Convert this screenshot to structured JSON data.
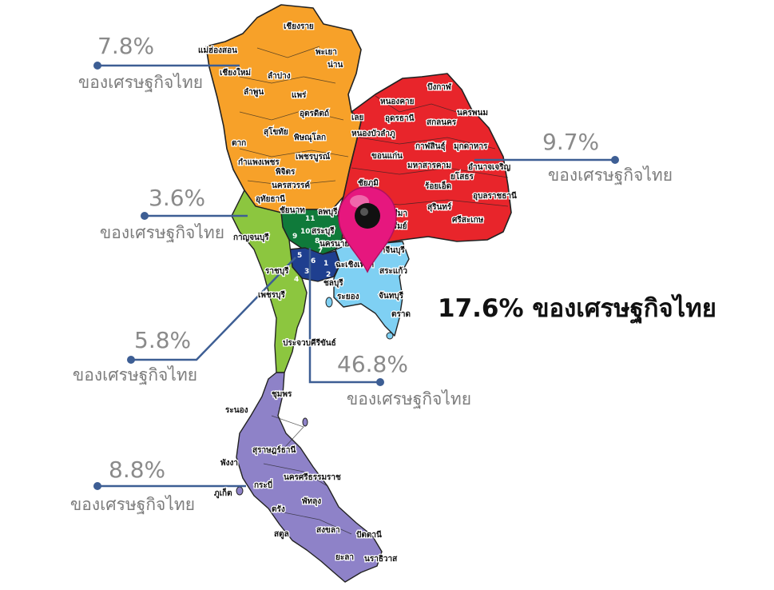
{
  "regions": {
    "north": {
      "percent": "7.8%",
      "label": "ของเศรษฐกิจไทย",
      "color": "#f7a129"
    },
    "northeast": {
      "percent": "9.7%",
      "label": "ของเศรษฐกิจไทย",
      "color": "#e8252b"
    },
    "west": {
      "percent": "3.6%",
      "label": "ของเศรษฐกิจไทย",
      "color": "#8cc63f"
    },
    "southwest": {
      "percent": "5.8%",
      "label": "ของเศรษฐกิจไทย",
      "color": "#8cc63f"
    },
    "central": {
      "percent": "46.8%",
      "label": "ของเศรษฐกิจไทย",
      "color": "#1f3f8f"
    },
    "south": {
      "percent": "8.8%",
      "label": "ของเศรษฐกิจไทย",
      "color": "#8e82c8"
    },
    "east": {
      "text": "17.6% ของเศรษฐกิจไทย",
      "color": "#7fd0f3"
    }
  },
  "provinces": {
    "chiangrai": "เชียงราย",
    "maehongson": "แม่ฮ่องสอน",
    "phayao": "พะเยา",
    "nan": "น่าน",
    "chiangmai": "เชียงใหม่",
    "lampang": "ลำปาง",
    "lamphun": "ลำพูน",
    "phrae": "แพร่",
    "uttaradit": "อุตรดิตถ์",
    "sukhothai": "สุโขทัย",
    "phitsanulok": "พิษณุโลก",
    "tak": "ตาก",
    "phetchabun": "เพชรบูรณ์",
    "kamphaengphet": "กำแพงเพชร",
    "phichit": "พิจิตร",
    "nakhonsawan": "นครสวรรค์",
    "uthaithani": "อุทัยธานี",
    "chainat": "ชัยนาท",
    "lopburi": "ลพบุรี",
    "saraburi": "สระบุรี",
    "nakhonnayok": "นครนายก",
    "kanchanaburi": "กาญจนบุรี",
    "ratchaburi": "ราชบุรี",
    "phetchaburi": "เพชรบุรี",
    "prachuap": "ประจวบคีรีขันธ์",
    "buengkan": "บึงกาฬ",
    "nongkhai": "หนองคาย",
    "nakhonphanom": "นครพนม",
    "loei": "เลย",
    "udonthani": "อุดรธานี",
    "sakonnakhon": "สกลนคร",
    "nongbualamphu": "หนองบัวลำภู",
    "kalasin": "กาฬสินธุ์",
    "mukdahan": "มุกดาหาร",
    "khonkaen": "ขอนแก่น",
    "mahasarakham": "มหาสารคาม",
    "amnatcharoen": "อำนาจเจริญ",
    "chaiyaphum": "ชัยภูมิ",
    "yasothon": "ยโสธร",
    "roiet": "ร้อยเอ็ด",
    "ubon": "อุบลราชธานี",
    "surin": "สุรินทร์",
    "sisaket": "ศรีสะเกษ",
    "nakhonratchasima": "นครราชสีมา",
    "buriram": "บุรีรัมย์",
    "prachinburi": "ปราจีนบุรี",
    "chachoengsao": "ฉะเชิงเทรา",
    "sakaeo": "สระแก้ว",
    "chonburi": "ชลบุรี",
    "rayong": "ระยอง",
    "chanthaburi": "จันทบุรี",
    "trat": "ตราด",
    "chumphon": "ชุมพร",
    "ranong": "ระนอง",
    "suratthani": "สุราษฎร์ธานี",
    "phangnga": "พังงา",
    "krabi": "กระบี่",
    "phuket": "ภูเก็ต",
    "nakhonsi": "นครศรีธรรมราช",
    "phatthalung": "พัทลุง",
    "trang": "ตรัง",
    "satun": "สตูล",
    "songkhla": "สงขลา",
    "pattani": "ปัตตานี",
    "yala": "ยะลา",
    "narathiwat": "นราธิวาส"
  },
  "central_numbers": [
    "1",
    "2",
    "3",
    "4",
    "5",
    "6",
    "7",
    "8",
    "9",
    "10",
    "11"
  ],
  "pin_color": "#e6177e"
}
